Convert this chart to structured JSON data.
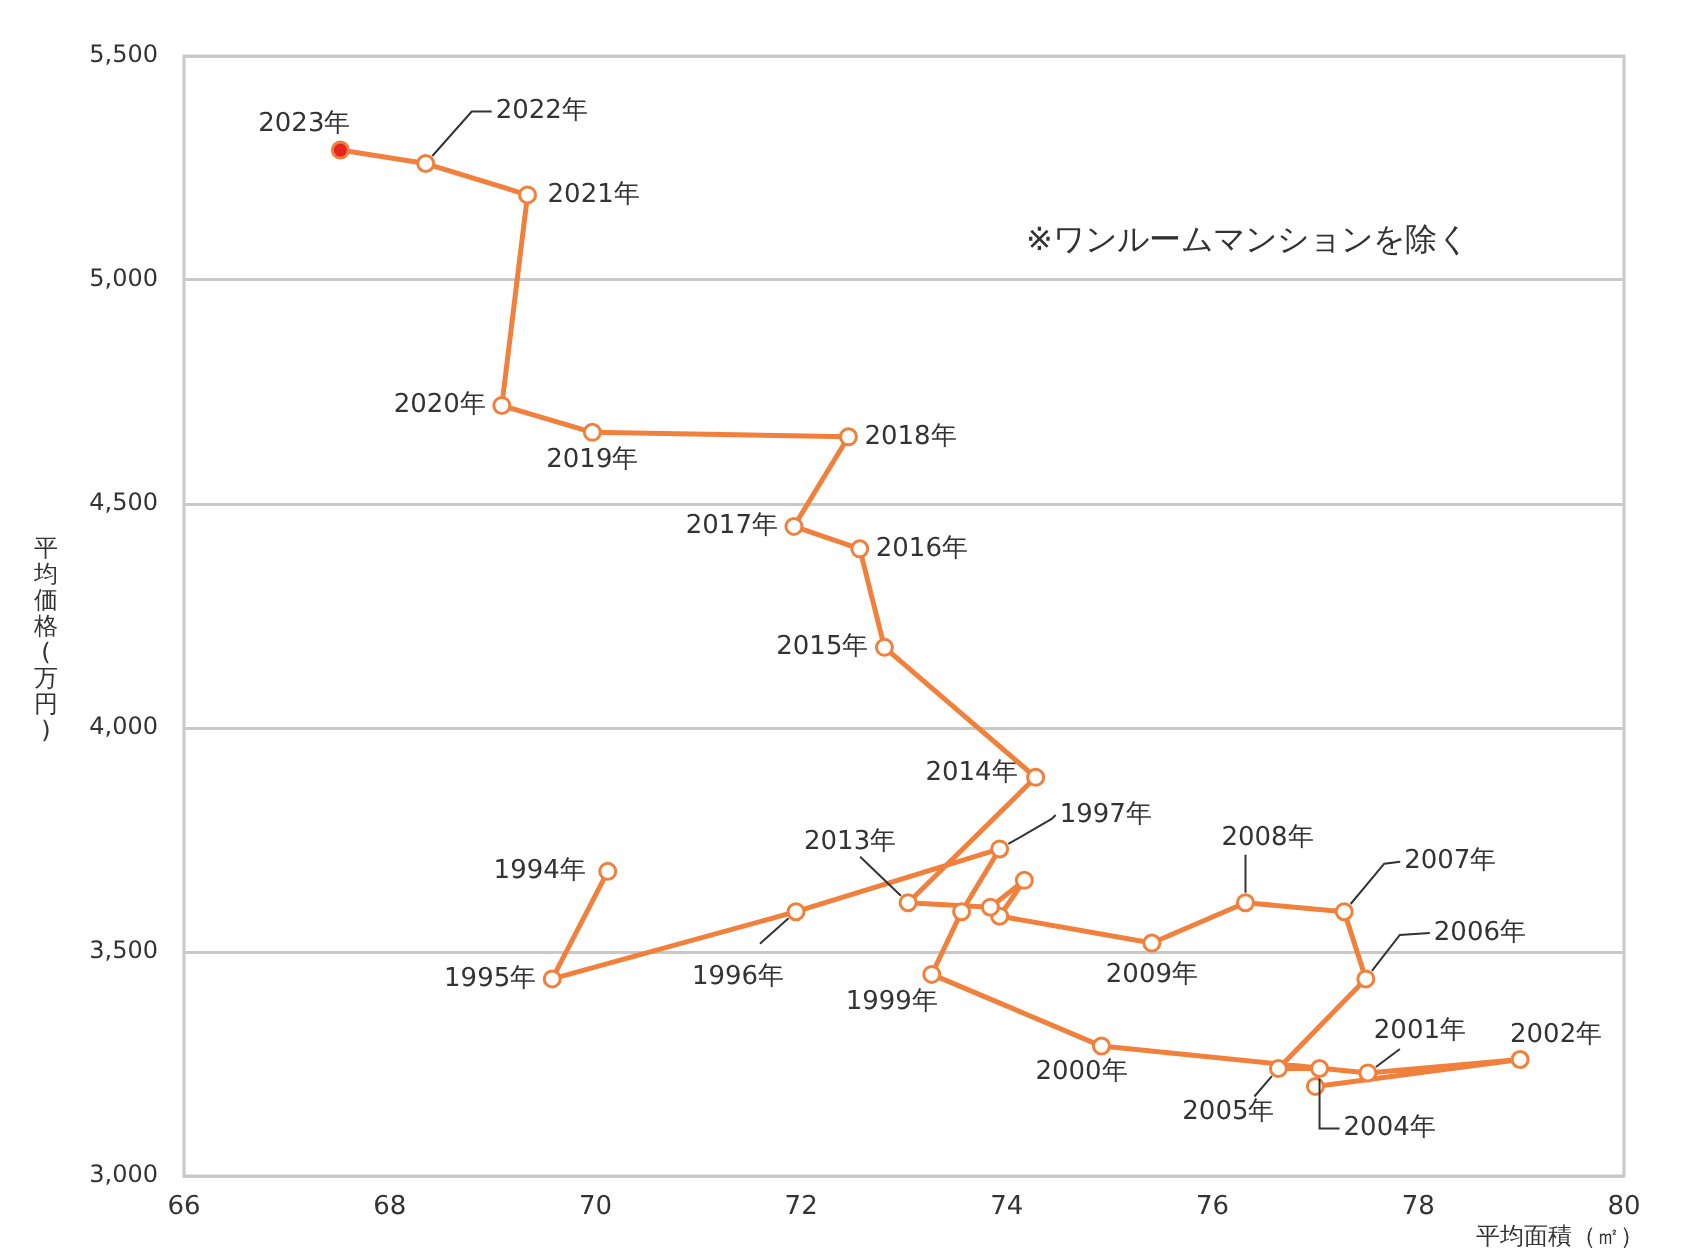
{
  "chart_data": {
    "type": "line",
    "xlabel": "平均面積（㎡）",
    "ylabel": "平均価格(万円)",
    "xlim": [
      66,
      80
    ],
    "xticks": [
      66,
      68,
      70,
      72,
      74,
      76,
      78,
      80
    ],
    "ylim": [
      3000,
      5500
    ],
    "yticks": [
      {
        "value": 3000,
        "label": "3,000"
      },
      {
        "value": 3500,
        "label": "3,500"
      },
      {
        "value": 4000,
        "label": "4,000"
      },
      {
        "value": 4500,
        "label": "4,500"
      },
      {
        "value": 5000,
        "label": "5,000"
      },
      {
        "value": 5500,
        "label": "5,500"
      }
    ],
    "grid": "y",
    "legend": false,
    "marker": "circle",
    "line_style": "solid",
    "series": [
      {
        "color": "#f0803c",
        "colors": [
          "#ffffff",
          "#ffffff",
          "#ffffff",
          "#ffffff",
          "#ffffff",
          "#ffffff",
          "#ffffff",
          "#ffffff",
          "#ffffff",
          "#ffffff",
          "#ffffff",
          "#ffffff",
          "#ffffff",
          "#ffffff",
          "#ffffff",
          "#ffffff",
          "#ffffff",
          "#ffffff",
          "#ffffff",
          "#ffffff",
          "#ffffff",
          "#ffffff",
          "#ffffff",
          "#ffffff",
          "#ffffff",
          "#ffffff",
          "#ffffff",
          "#ffffff",
          "#ffffff",
          "#e8231e"
        ],
        "x": [
          70.12,
          69.58,
          71.95,
          73.93,
          73.56,
          73.27,
          74.92,
          77.51,
          78.99,
          77.0,
          77.04,
          76.64,
          77.49,
          77.28,
          76.32,
          75.41,
          73.93,
          74.17,
          73.84,
          73.04,
          74.28,
          72.81,
          72.57,
          71.93,
          72.46,
          69.97,
          69.09,
          69.34,
          68.35,
          67.52
        ],
        "values": [
          3680,
          3440,
          3590,
          3730,
          3590,
          3450,
          3290,
          3230,
          3260,
          3200,
          3240,
          3240,
          3440,
          3590,
          3610,
          3520,
          3580,
          3660,
          3600,
          3610,
          3890,
          4180,
          4400,
          4450,
          4650,
          4660,
          4720,
          5190,
          5260,
          5290
        ]
      }
    ],
    "annotations": [
      {
        "text": "1994年",
        "x": 70.12,
        "y": 3680
      },
      {
        "text": "1995年",
        "x": 69.58,
        "y": 3440
      },
      {
        "text": "1996年",
        "x": 71.95,
        "y": 3590
      },
      {
        "text": "1997年",
        "x": 73.93,
        "y": 3730
      },
      {
        "text": "1999年",
        "x": 73.27,
        "y": 3450
      },
      {
        "text": "2000年",
        "x": 74.92,
        "y": 3290
      },
      {
        "text": "2001年",
        "x": 77.51,
        "y": 3230
      },
      {
        "text": "2002年",
        "x": 78.99,
        "y": 3260
      },
      {
        "text": "2004年",
        "x": 77.04,
        "y": 3240
      },
      {
        "text": "2005年",
        "x": 76.64,
        "y": 3240
      },
      {
        "text": "2006年",
        "x": 77.49,
        "y": 3440
      },
      {
        "text": "2007年",
        "x": 77.28,
        "y": 3590
      },
      {
        "text": "2008年",
        "x": 76.32,
        "y": 3610
      },
      {
        "text": "2009年",
        "x": 75.41,
        "y": 3520
      },
      {
        "text": "2013年",
        "x": 73.04,
        "y": 3610
      },
      {
        "text": "2014年",
        "x": 74.28,
        "y": 3890
      },
      {
        "text": "2015年",
        "x": 72.81,
        "y": 4180
      },
      {
        "text": "2016年",
        "x": 72.57,
        "y": 4400
      },
      {
        "text": "2017年",
        "x": 71.93,
        "y": 4450
      },
      {
        "text": "2018年",
        "x": 72.46,
        "y": 4650
      },
      {
        "text": "2019年",
        "x": 69.97,
        "y": 4660
      },
      {
        "text": "2020年",
        "x": 69.09,
        "y": 4720
      },
      {
        "text": "2021年",
        "x": 69.34,
        "y": 5190
      },
      {
        "text": "2022年",
        "x": 68.35,
        "y": 5260
      },
      {
        "text": "2023年",
        "x": 67.52,
        "y": 5290
      },
      "※ワンルームマンションを除く"
    ]
  }
}
